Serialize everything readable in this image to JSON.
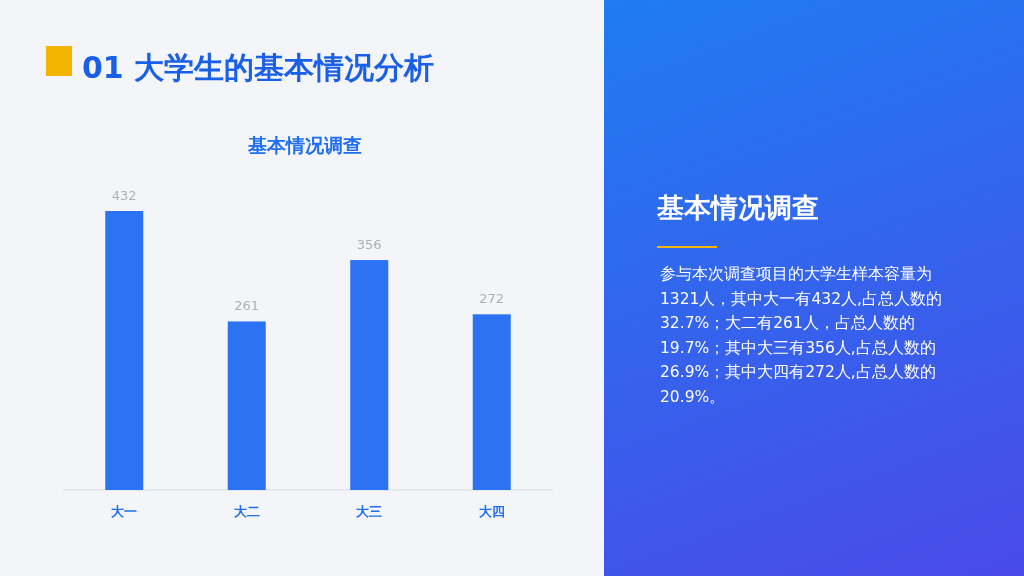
{
  "chart_data": {
    "type": "bar",
    "title": "01 大学生的基本情况分析",
    "subtitle": "基本情况调查",
    "categories": [
      "大一",
      "大二",
      "大三",
      "大四"
    ],
    "values": [
      432,
      261,
      356,
      272
    ],
    "color": "#2b73f2",
    "data_labels": true,
    "annotations": [
      "基本情况调查",
      "参与本次调查项目的大学生样本容量为1321人，其中大一有432人,占总人数的32.7%；大二有261人，占总人数的19.7%；其中大三有356人,占总人数的26.9%；其中大四有272人,占总人数的20.9%。"
    ]
  }
}
